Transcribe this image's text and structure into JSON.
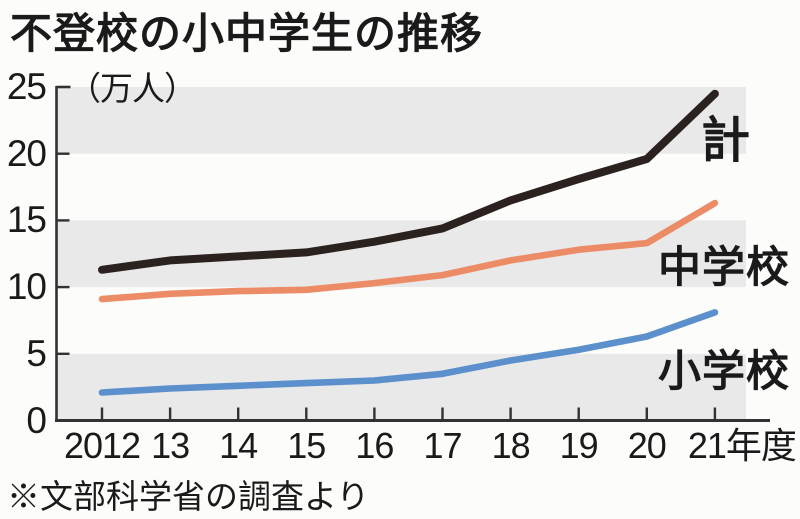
{
  "title": "不登校の小中学生の推移",
  "source_note": "※文部科学省の調査より",
  "chart_data": {
    "type": "line",
    "title": "不登校の小中学生の推移",
    "unit_label": "（万人）",
    "ylabel": "万人",
    "ylim": [
      0,
      25
    ],
    "y_ticks": [
      25,
      20,
      15,
      10,
      5,
      0
    ],
    "x_tick_labels": [
      "2012",
      "13",
      "14",
      "15",
      "16",
      "17",
      "18",
      "19",
      "20",
      "21年度"
    ],
    "categories": [
      "2012",
      "2013",
      "2014",
      "2015",
      "2016",
      "2017",
      "2018",
      "2019",
      "2020",
      "2021"
    ],
    "grid": "alternating-horizontal-bands",
    "band_color": "#e9e9e9",
    "axis_color": "#323232",
    "legend_position": "inline-right",
    "series": [
      {
        "name": "計",
        "slug": "total",
        "color": "#2b2220",
        "values": [
          11.3,
          12.0,
          12.3,
          12.6,
          13.4,
          14.4,
          16.5,
          18.1,
          19.6,
          24.5
        ]
      },
      {
        "name": "中学校",
        "slug": "junior-high-school",
        "color": "#ec8c66",
        "values": [
          9.1,
          9.5,
          9.7,
          9.8,
          10.3,
          10.9,
          12.0,
          12.8,
          13.3,
          16.3
        ]
      },
      {
        "name": "小学校",
        "slug": "elementary-school",
        "color": "#5c90cc",
        "values": [
          2.1,
          2.4,
          2.6,
          2.8,
          3.0,
          3.5,
          4.5,
          5.3,
          6.3,
          8.1
        ]
      }
    ]
  }
}
